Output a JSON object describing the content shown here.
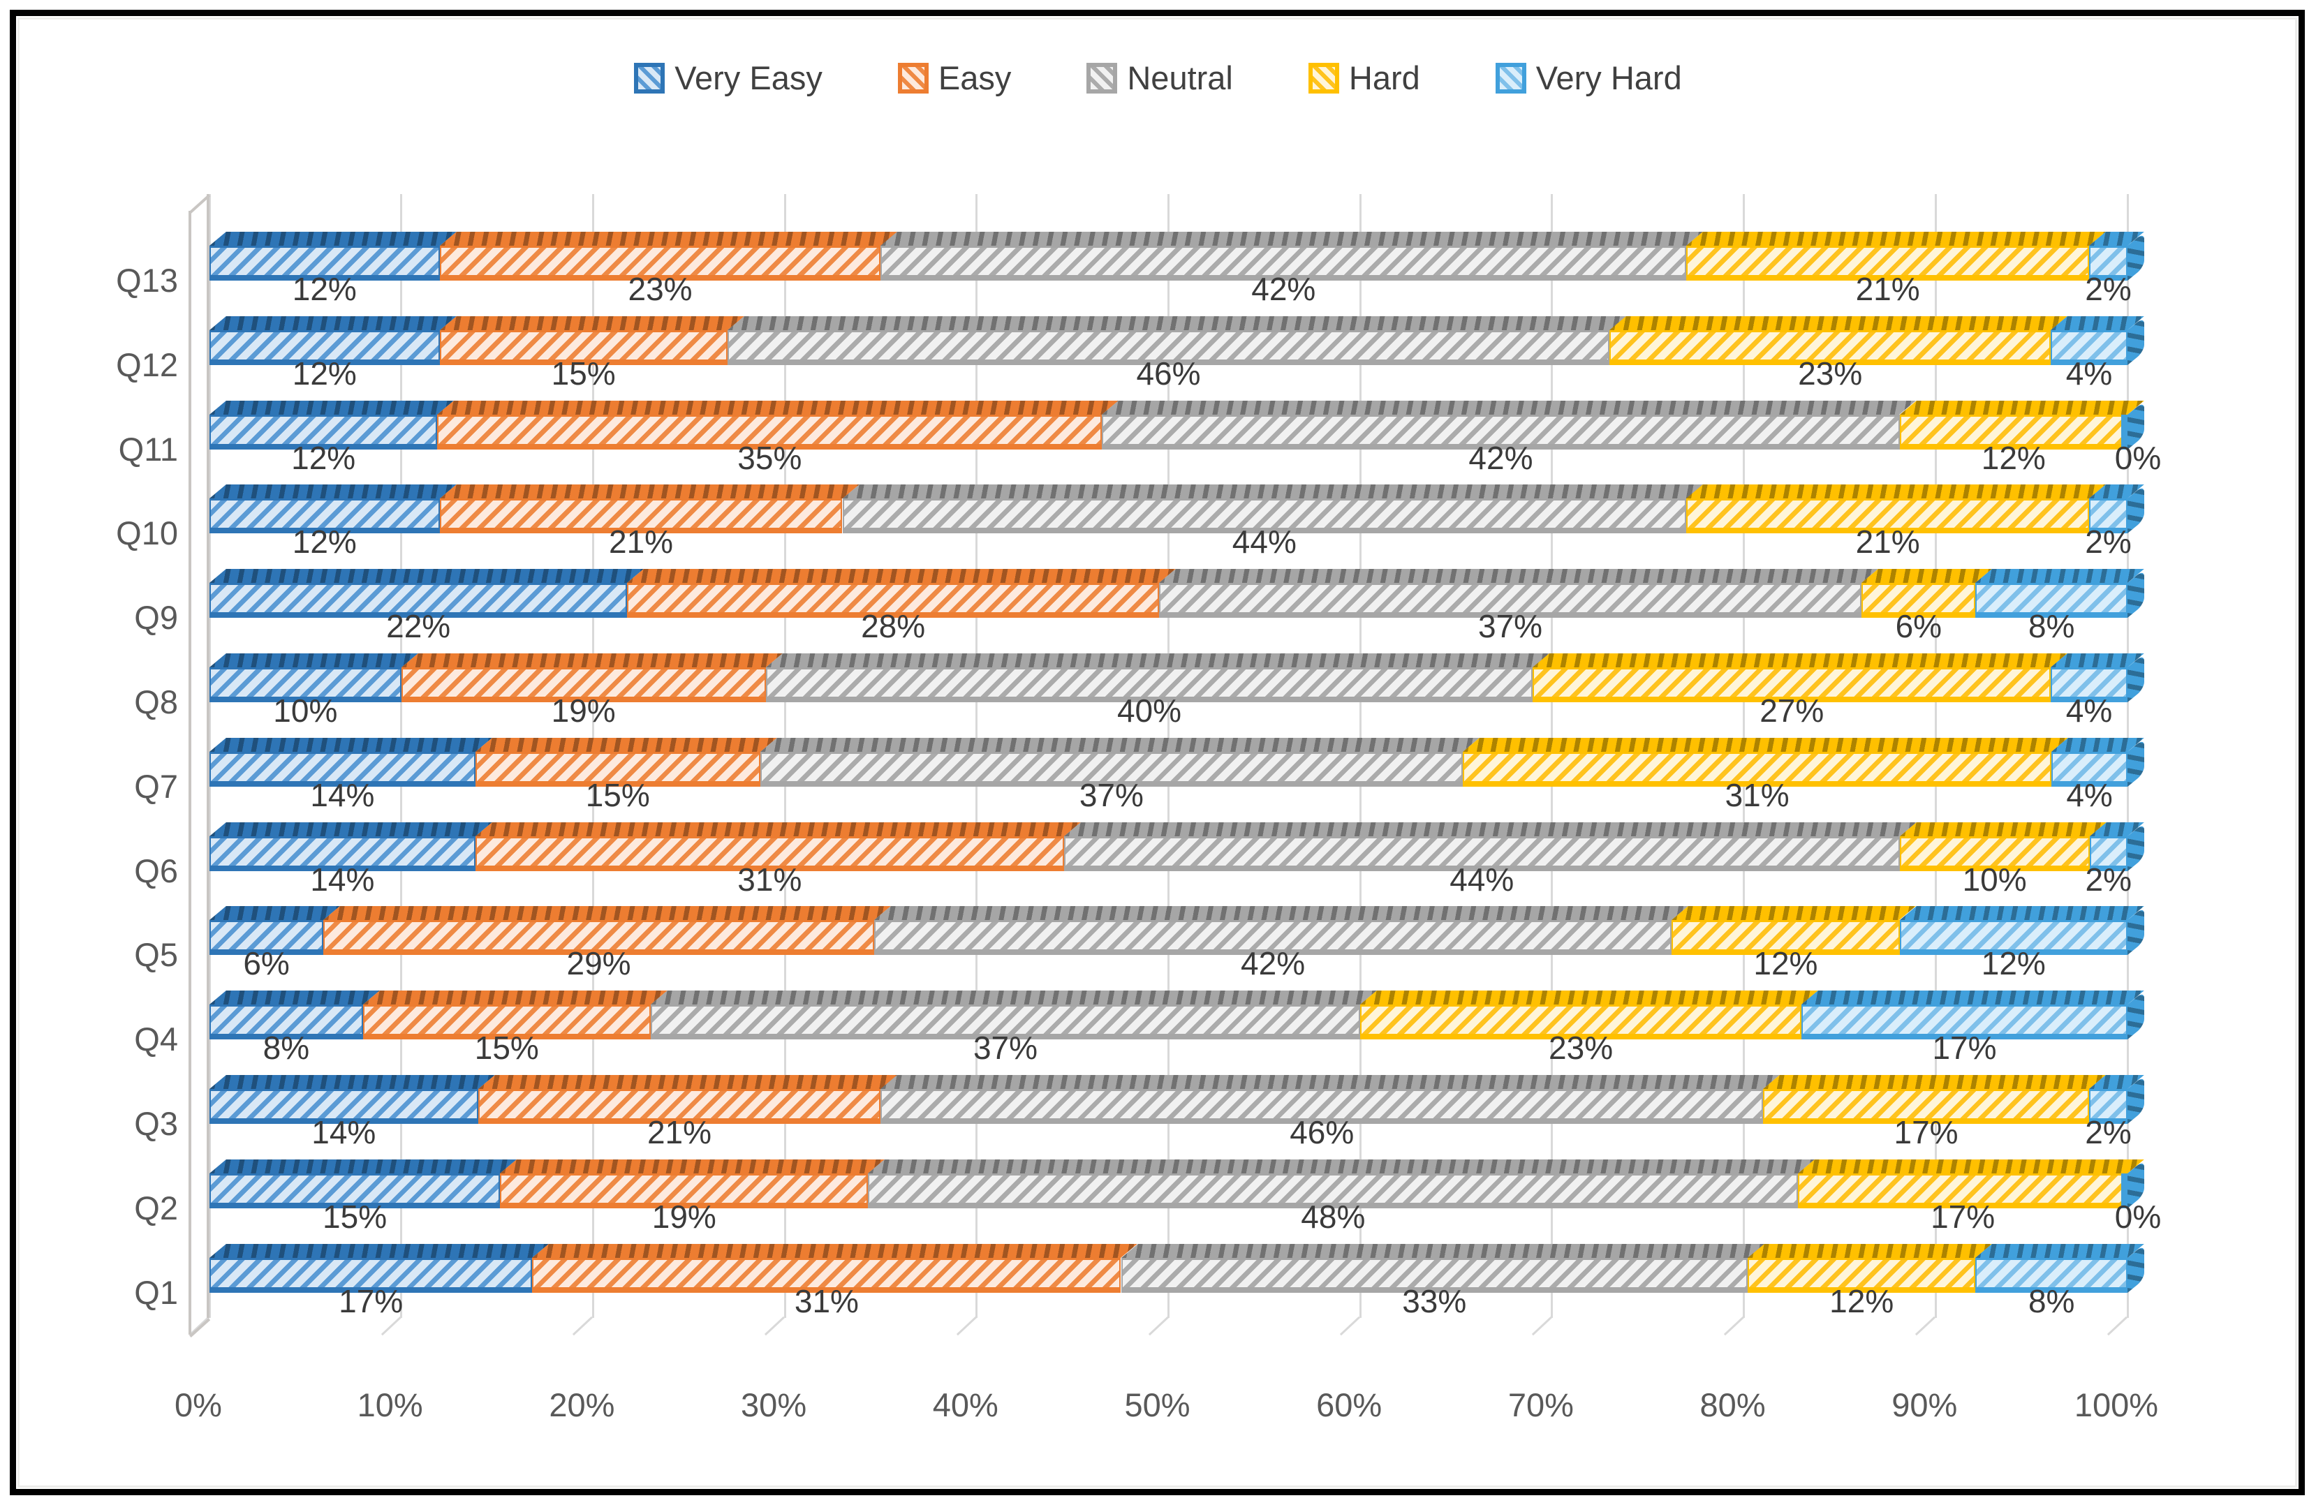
{
  "chart_data": {
    "type": "bar",
    "variant": "100-percent-stacked-horizontal-3d",
    "title": "",
    "xlabel": "",
    "ylabel": "",
    "xlim": [
      0,
      100
    ],
    "grid": "vertical",
    "legend_position": "top",
    "data_label_format": "percent",
    "x_ticks": [
      "0%",
      "10%",
      "20%",
      "30%",
      "40%",
      "50%",
      "60%",
      "70%",
      "80%",
      "90%",
      "100%"
    ],
    "categories": [
      "Q1",
      "Q2",
      "Q3",
      "Q4",
      "Q5",
      "Q6",
      "Q7",
      "Q8",
      "Q9",
      "Q10",
      "Q11",
      "Q12",
      "Q13"
    ],
    "row_order_top_to_bottom": [
      "Q13",
      "Q12",
      "Q11",
      "Q10",
      "Q9",
      "Q8",
      "Q7",
      "Q6",
      "Q5",
      "Q4",
      "Q3",
      "Q2",
      "Q1"
    ],
    "series": [
      {
        "name": "Very Easy",
        "color": "#2e75b6",
        "stripe": "#5b9bd5",
        "tint": "#d9e8f6",
        "values": [
          17,
          15,
          14,
          8,
          6,
          14,
          14,
          10,
          22,
          12,
          12,
          12,
          12
        ]
      },
      {
        "name": "Easy",
        "color": "#ed7d31",
        "stripe": "#ef8a45",
        "tint": "#fdeade",
        "values": [
          31,
          19,
          21,
          15,
          29,
          31,
          15,
          19,
          28,
          21,
          35,
          15,
          23
        ]
      },
      {
        "name": "Neutral",
        "color": "#a6a6a6",
        "stripe": "#ababab",
        "tint": "#f1f1f1",
        "values": [
          33,
          48,
          46,
          37,
          42,
          44,
          37,
          40,
          37,
          44,
          42,
          46,
          42
        ]
      },
      {
        "name": "Hard",
        "color": "#ffc000",
        "stripe": "#ffc31e",
        "tint": "#fff5d9",
        "values": [
          12,
          17,
          17,
          23,
          12,
          10,
          31,
          27,
          6,
          21,
          12,
          23,
          21
        ]
      },
      {
        "name": "Very Hard",
        "color": "#41a0dc",
        "stripe": "#7fc0ea",
        "tint": "#daeefb",
        "values": [
          8,
          0,
          2,
          17,
          12,
          2,
          4,
          4,
          8,
          2,
          0,
          4,
          2
        ]
      }
    ]
  }
}
